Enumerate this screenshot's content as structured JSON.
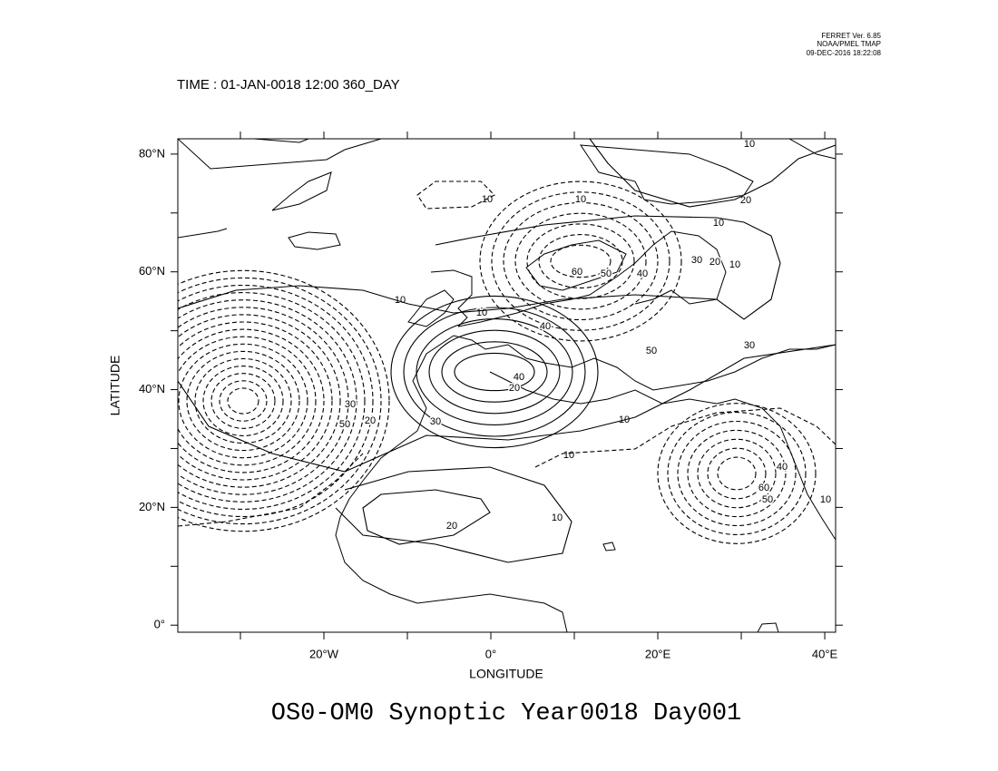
{
  "header": {
    "version": "FERRET Ver. 6.85",
    "org": "NOAA/PMEL TMAP",
    "date": "09-DEC-2016 18:22:08"
  },
  "time_label": "TIME : 01-JAN-0018 12:00 360_DAY",
  "title": "OS0-OM0 Synoptic Year0018 Day001",
  "map": {
    "xlabel": "LONGITUDE",
    "ylabel": "LATITUDE",
    "xlim": [
      -37.5,
      41.3
    ],
    "ylim": [
      -1.2,
      82.6
    ],
    "xticks": [
      {
        "value": -20,
        "label": "20°W"
      },
      {
        "value": 0,
        "label": "0°"
      },
      {
        "value": 20,
        "label": "20°E"
      },
      {
        "value": 40,
        "label": "40°E"
      }
    ],
    "yticks": [
      {
        "value": 0,
        "label": "0°"
      },
      {
        "value": 20,
        "label": "20°N"
      },
      {
        "value": 40,
        "label": "40°N"
      },
      {
        "value": 60,
        "label": "60°N"
      },
      {
        "value": 80,
        "label": "80°N"
      }
    ],
    "minor_xticks": [
      -30,
      -10,
      10,
      30
    ],
    "minor_yticks": [
      10,
      30,
      50,
      70
    ],
    "contour_labels": [
      10,
      10,
      10,
      20,
      10,
      30,
      20,
      10,
      60,
      50,
      40,
      10,
      10,
      40,
      50,
      30,
      40,
      20,
      30,
      20,
      50,
      10,
      30,
      10,
      40,
      60,
      50,
      10,
      20,
      10
    ]
  }
}
